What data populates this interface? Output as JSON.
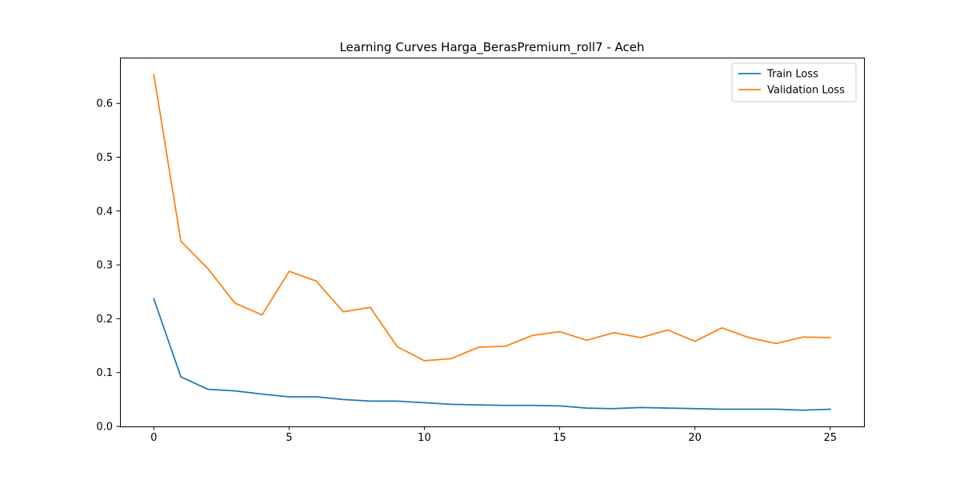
{
  "chart_data": {
    "type": "line",
    "title": "Learning Curves Harga_BerasPremium_roll7 - Aceh",
    "xlabel": "",
    "ylabel": "",
    "x": [
      0,
      1,
      2,
      3,
      4,
      5,
      6,
      7,
      8,
      9,
      10,
      11,
      12,
      13,
      14,
      15,
      16,
      17,
      18,
      19,
      20,
      21,
      22,
      23,
      24,
      25
    ],
    "xlim": [
      -1.25,
      26.25
    ],
    "ylim": [
      0.0,
      0.685
    ],
    "xticks": [
      0,
      5,
      10,
      15,
      20,
      25
    ],
    "yticks": [
      0.0,
      0.1,
      0.2,
      0.3,
      0.4,
      0.5,
      0.6
    ],
    "grid": false,
    "legend_position": "top-right",
    "series": [
      {
        "name": "Train Loss",
        "color": "#1f77b4",
        "values": [
          0.237,
          0.092,
          0.069,
          0.066,
          0.06,
          0.055,
          0.055,
          0.05,
          0.047,
          0.047,
          0.044,
          0.041,
          0.04,
          0.039,
          0.039,
          0.038,
          0.034,
          0.033,
          0.035,
          0.034,
          0.033,
          0.032,
          0.032,
          0.032,
          0.03,
          0.032
        ]
      },
      {
        "name": "Validation Loss",
        "color": "#ff7f0e",
        "values": [
          0.653,
          0.344,
          0.293,
          0.229,
          0.207,
          0.288,
          0.27,
          0.213,
          0.221,
          0.148,
          0.122,
          0.126,
          0.147,
          0.149,
          0.169,
          0.176,
          0.16,
          0.174,
          0.165,
          0.179,
          0.158,
          0.183,
          0.165,
          0.154,
          0.166,
          0.165
        ]
      }
    ]
  }
}
